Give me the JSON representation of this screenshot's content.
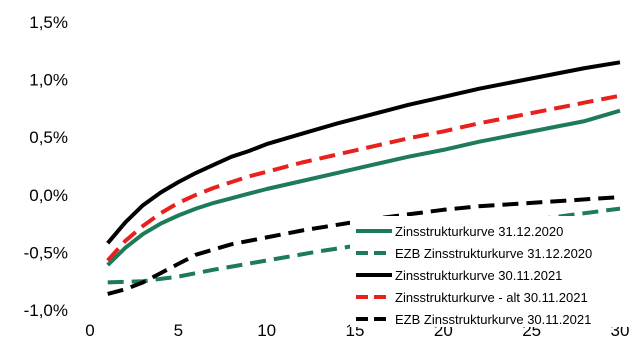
{
  "chart_data": {
    "type": "line",
    "xlim": [
      0,
      30
    ],
    "ylim": [
      -1.0,
      1.5
    ],
    "x_ticks": [
      "0",
      "5",
      "10",
      "15",
      "20",
      "25",
      "30"
    ],
    "y_ticks": [
      "1,5%",
      "1,0%",
      "0,5%",
      "0,0%",
      "-0,5%",
      "-1,0%"
    ],
    "grid": false,
    "legend_position": "bottom-right",
    "series": [
      {
        "name": "Zinsstrukturkurve 31.12.2020",
        "color": "#1e7b5a",
        "style": "solid",
        "points": [
          [
            1,
            -0.61
          ],
          [
            2,
            -0.46
          ],
          [
            3,
            -0.34
          ],
          [
            4,
            -0.25
          ],
          [
            5,
            -0.18
          ],
          [
            6,
            -0.12
          ],
          [
            7,
            -0.07
          ],
          [
            8,
            -0.03
          ],
          [
            9,
            0.01
          ],
          [
            10,
            0.05
          ],
          [
            12,
            0.12
          ],
          [
            14,
            0.19
          ],
          [
            16,
            0.26
          ],
          [
            18,
            0.33
          ],
          [
            20,
            0.39
          ],
          [
            22,
            0.46
          ],
          [
            24,
            0.52
          ],
          [
            26,
            0.58
          ],
          [
            28,
            0.64
          ],
          [
            30,
            0.73
          ]
        ]
      },
      {
        "name": "EZB Zinsstrukturkurve 31.12.2020",
        "color": "#1e7b5a",
        "style": "dashed",
        "points": [
          [
            1,
            -0.76
          ],
          [
            3,
            -0.75
          ],
          [
            5,
            -0.71
          ],
          [
            7,
            -0.65
          ],
          [
            10,
            -0.57
          ],
          [
            13,
            -0.49
          ],
          [
            16,
            -0.42
          ],
          [
            19,
            -0.35
          ],
          [
            22,
            -0.28
          ],
          [
            25,
            -0.22
          ],
          [
            28,
            -0.16
          ],
          [
            30,
            -0.12
          ]
        ]
      },
      {
        "name": "Zinsstrukturkurve 30.11.2021",
        "color": "#000000",
        "style": "solid",
        "points": [
          [
            1,
            -0.42
          ],
          [
            2,
            -0.24
          ],
          [
            3,
            -0.09
          ],
          [
            4,
            0.02
          ],
          [
            5,
            0.11
          ],
          [
            6,
            0.19
          ],
          [
            7,
            0.26
          ],
          [
            8,
            0.33
          ],
          [
            9,
            0.38
          ],
          [
            10,
            0.44
          ],
          [
            12,
            0.53
          ],
          [
            14,
            0.62
          ],
          [
            16,
            0.7
          ],
          [
            18,
            0.78
          ],
          [
            20,
            0.85
          ],
          [
            22,
            0.92
          ],
          [
            24,
            0.98
          ],
          [
            26,
            1.04
          ],
          [
            28,
            1.1
          ],
          [
            30,
            1.15
          ]
        ]
      },
      {
        "name": "Zinsstrukturkurve - alt 30.11.2021",
        "color": "#e8211d",
        "style": "dashed",
        "points": [
          [
            1,
            -0.57
          ],
          [
            2,
            -0.4
          ],
          [
            3,
            -0.27
          ],
          [
            4,
            -0.16
          ],
          [
            5,
            -0.07
          ],
          [
            6,
            0.0
          ],
          [
            7,
            0.06
          ],
          [
            8,
            0.11
          ],
          [
            9,
            0.16
          ],
          [
            10,
            0.2
          ],
          [
            12,
            0.28
          ],
          [
            14,
            0.35
          ],
          [
            16,
            0.42
          ],
          [
            18,
            0.49
          ],
          [
            20,
            0.55
          ],
          [
            22,
            0.62
          ],
          [
            24,
            0.68
          ],
          [
            26,
            0.74
          ],
          [
            28,
            0.8
          ],
          [
            30,
            0.86
          ]
        ]
      },
      {
        "name": "EZB Zinsstrukturkurve 30.11.2021",
        "color": "#000000",
        "style": "dashed",
        "points": [
          [
            1,
            -0.86
          ],
          [
            2,
            -0.82
          ],
          [
            3,
            -0.76
          ],
          [
            4,
            -0.68
          ],
          [
            5,
            -0.6
          ],
          [
            6,
            -0.52
          ],
          [
            8,
            -0.43
          ],
          [
            10,
            -0.37
          ],
          [
            12,
            -0.31
          ],
          [
            14,
            -0.26
          ],
          [
            16,
            -0.21
          ],
          [
            18,
            -0.17
          ],
          [
            20,
            -0.13
          ],
          [
            22,
            -0.1
          ],
          [
            24,
            -0.08
          ],
          [
            26,
            -0.06
          ],
          [
            28,
            -0.04
          ],
          [
            30,
            -0.02
          ]
        ]
      }
    ]
  }
}
